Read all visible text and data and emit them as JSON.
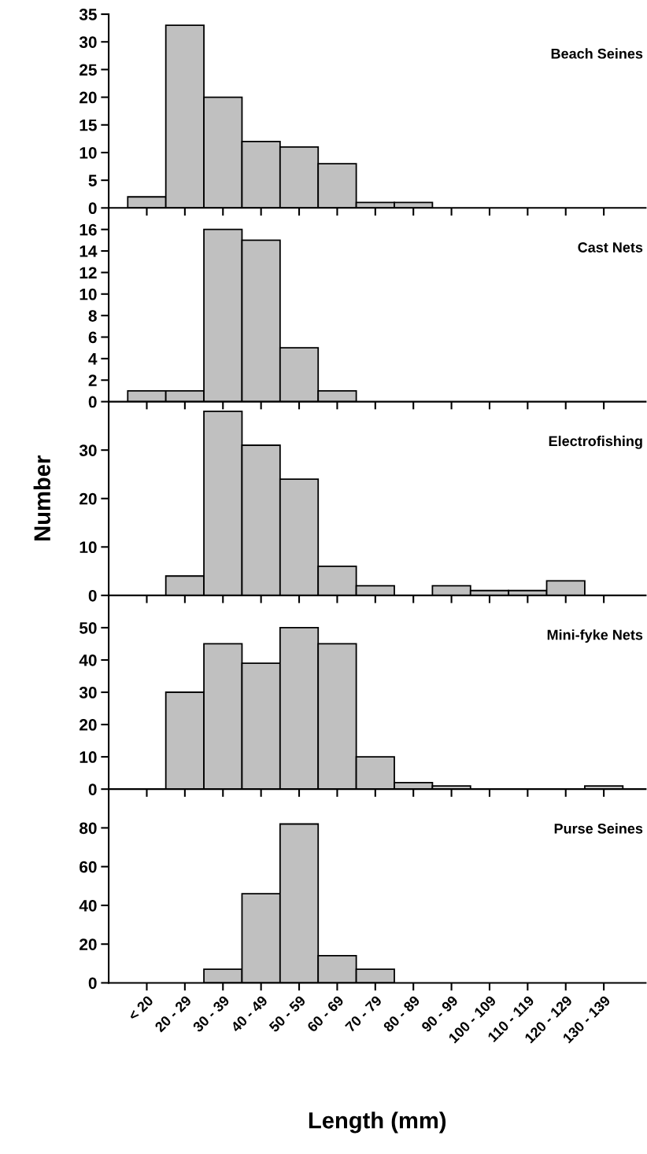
{
  "chart_data": [
    {
      "type": "bar",
      "title": "Beach Seines",
      "categories": [
        null,
        null,
        null,
        null,
        null,
        null,
        null,
        null,
        null,
        null,
        null,
        null,
        null
      ],
      "values": [
        2,
        33,
        20,
        12,
        11,
        8,
        1,
        1,
        0,
        0,
        0,
        0,
        0
      ],
      "color": "#c0c0c0",
      "ylim": [
        0,
        35
      ],
      "yticks": [
        0,
        5,
        10,
        15,
        20,
        25,
        30,
        35
      ],
      "tick_labels": "y"
    },
    {
      "type": "bar",
      "title": "Cast Nets",
      "categories": [
        null,
        null,
        null,
        null,
        null,
        null,
        null,
        null,
        null,
        null,
        null,
        null,
        null
      ],
      "values": [
        1,
        1,
        16,
        15,
        5,
        1,
        0,
        0,
        0,
        0,
        0,
        0,
        0
      ],
      "color": "#c0c0c0",
      "ylim": [
        0,
        18
      ],
      "yticks": [
        0,
        2,
        4,
        6,
        8,
        10,
        12,
        14,
        16
      ],
      "tick_labels": "y"
    },
    {
      "type": "bar",
      "title": "Electrofishing",
      "ylabel": "Number",
      "categories": [
        null,
        null,
        null,
        null,
        null,
        null,
        null,
        null,
        null,
        null,
        null,
        null,
        null
      ],
      "values": [
        0,
        4,
        38,
        31,
        24,
        6,
        2,
        0,
        2,
        1,
        1,
        3,
        0
      ],
      "color": "#c0c0c0",
      "ylim": [
        0,
        40
      ],
      "yticks": [
        0,
        10,
        20,
        30
      ],
      "tick_labels": "y"
    },
    {
      "type": "bar",
      "title": "Mini-fyke Nets",
      "categories": [
        null,
        null,
        null,
        null,
        null,
        null,
        null,
        null,
        null,
        null,
        null,
        null,
        null
      ],
      "values": [
        0,
        30,
        45,
        39,
        50,
        45,
        10,
        2,
        1,
        0,
        0,
        0,
        1
      ],
      "color": "#c0c0c0",
      "ylim": [
        0,
        60
      ],
      "yticks": [
        0,
        10,
        20,
        30,
        40,
        50
      ],
      "tick_labels": "y"
    },
    {
      "type": "bar",
      "title": "Purse Seines",
      "xlabel": "Length (mm)",
      "categories": [
        "< 20",
        "20 - 29",
        "30 - 39",
        "40 - 49",
        "50 - 59",
        "60 - 69",
        "70 - 79",
        "80 - 89",
        "90 - 99",
        "100 - 109",
        "110 - 119",
        "120 - 129",
        "130 - 139"
      ],
      "values": [
        0,
        0,
        7,
        46,
        82,
        14,
        7,
        0,
        0,
        0,
        0,
        0,
        0
      ],
      "color": "#c0c0c0",
      "ylim": [
        0,
        100
      ],
      "yticks": [
        0,
        20,
        40,
        60,
        80
      ]
    }
  ]
}
